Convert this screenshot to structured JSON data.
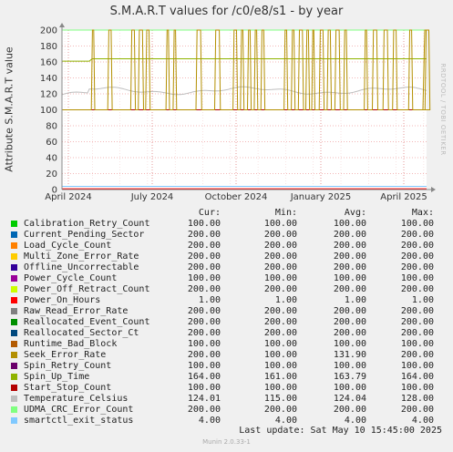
{
  "title": "S.M.A.R.T values for /c0/e8/s1 - by year",
  "side_label": "RRDTOOL / TOBI OETIKER",
  "footer": {
    "last_update": "Last update:  Sat May 10 15:45:00 2025",
    "munin": "Munin 2.0.33-1"
  },
  "legend_headers": {
    "cur": "Cur:",
    "min": "Min:",
    "avg": "Avg:",
    "max": "Max:"
  },
  "chart_data": {
    "type": "line",
    "title": "S.M.A.R.T values for /c0/e8/s1 - by year",
    "ylabel": "Attribute S.M.A.R.T value",
    "xlabel": "",
    "ylim": [
      0,
      200
    ],
    "yticks": [
      "0",
      "20",
      "40",
      "60",
      "80",
      "100",
      "120",
      "140",
      "160",
      "180",
      "200"
    ],
    "xticks": [
      "April 2024",
      "July 2024",
      "October 2024",
      "January 2025",
      "April 2025"
    ],
    "grid": true,
    "series": [
      {
        "name": "Calibration_Retry_Count",
        "color": "#00cc00",
        "cur": "100.00",
        "min": "100.00",
        "avg": "100.00",
        "max": "100.00"
      },
      {
        "name": "Current_Pending_Sector",
        "color": "#0066b3",
        "cur": "200.00",
        "min": "200.00",
        "avg": "200.00",
        "max": "200.00"
      },
      {
        "name": "Load_Cycle_Count",
        "color": "#ff8000",
        "cur": "200.00",
        "min": "200.00",
        "avg": "200.00",
        "max": "200.00"
      },
      {
        "name": "Multi_Zone_Error_Rate",
        "color": "#ffcc00",
        "cur": "200.00",
        "min": "200.00",
        "avg": "200.00",
        "max": "200.00"
      },
      {
        "name": "Offline_Uncorrectable",
        "color": "#330099",
        "cur": "200.00",
        "min": "200.00",
        "avg": "200.00",
        "max": "200.00"
      },
      {
        "name": "Power_Cycle_Count",
        "color": "#990099",
        "cur": "100.00",
        "min": "100.00",
        "avg": "100.00",
        "max": "100.00"
      },
      {
        "name": "Power_Off_Retract_Count",
        "color": "#ccff00",
        "cur": "200.00",
        "min": "200.00",
        "avg": "200.00",
        "max": "200.00"
      },
      {
        "name": "Power_On_Hours",
        "color": "#ff0000",
        "cur": "1.00",
        "min": "1.00",
        "avg": "1.00",
        "max": "1.00"
      },
      {
        "name": "Raw_Read_Error_Rate",
        "color": "#808080",
        "cur": "200.00",
        "min": "200.00",
        "avg": "200.00",
        "max": "200.00"
      },
      {
        "name": "Reallocated_Event_Count",
        "color": "#008f00",
        "cur": "200.00",
        "min": "200.00",
        "avg": "200.00",
        "max": "200.00"
      },
      {
        "name": "Reallocated_Sector_Ct",
        "color": "#00487d",
        "cur": "200.00",
        "min": "200.00",
        "avg": "200.00",
        "max": "200.00"
      },
      {
        "name": "Runtime_Bad_Block",
        "color": "#b35a00",
        "cur": "100.00",
        "min": "100.00",
        "avg": "100.00",
        "max": "100.00"
      },
      {
        "name": "Seek_Error_Rate",
        "color": "#b38f00",
        "cur": "200.00",
        "min": "100.00",
        "avg": "131.90",
        "max": "200.00"
      },
      {
        "name": "Spin_Retry_Count",
        "color": "#6b006b",
        "cur": "100.00",
        "min": "100.00",
        "avg": "100.00",
        "max": "100.00"
      },
      {
        "name": "Spin_Up_Time",
        "color": "#8fb300",
        "cur": "164.00",
        "min": "161.00",
        "avg": "163.79",
        "max": "164.00"
      },
      {
        "name": "Start_Stop_Count",
        "color": "#b30000",
        "cur": "100.00",
        "min": "100.00",
        "avg": "100.00",
        "max": "100.00"
      },
      {
        "name": "Temperature_Celsius",
        "color": "#bebebe",
        "cur": "124.01",
        "min": "115.00",
        "avg": "124.04",
        "max": "128.00"
      },
      {
        "name": "UDMA_CRC_Error_Count",
        "color": "#80ff80",
        "cur": "200.00",
        "min": "200.00",
        "avg": "200.00",
        "max": "200.00"
      },
      {
        "name": "smartctl_exit_status",
        "color": "#80c9ff",
        "cur": "4.00",
        "min": "4.00",
        "avg": "4.00",
        "max": "4.00"
      }
    ]
  }
}
